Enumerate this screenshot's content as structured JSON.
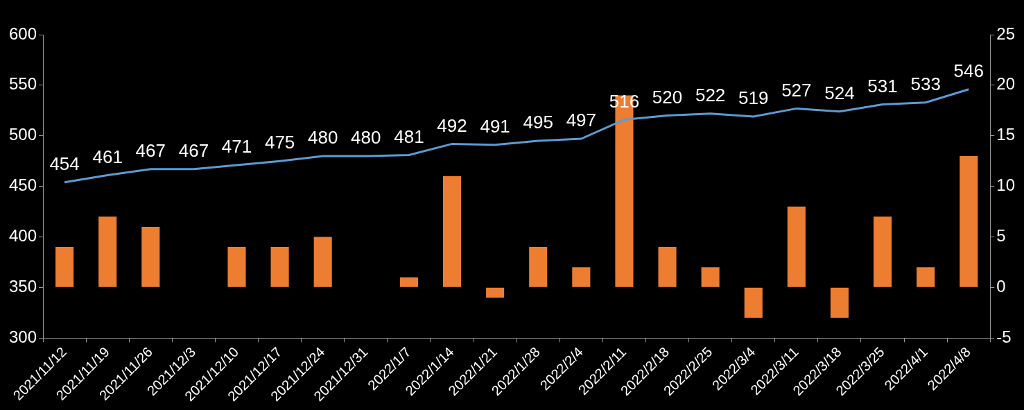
{
  "chart_data": {
    "type": "bar",
    "categories": [
      "2021/11/12",
      "2021/11/19",
      "2021/11/26",
      "2021/12/3",
      "2021/12/10",
      "2021/12/17",
      "2021/12/24",
      "2021/12/31",
      "2022/1/7",
      "2022/1/14",
      "2022/1/21",
      "2022/1/28",
      "2022/2/4",
      "2022/2/11",
      "2022/2/18",
      "2022/2/25",
      "2022/3/4",
      "2022/3/11",
      "2022/3/18",
      "2022/3/25",
      "2022/4/1",
      "2022/4/8"
    ],
    "series": [
      {
        "type": "line",
        "color": "#5b9bd5",
        "marker": "none",
        "data_labels": true,
        "values": [
          454,
          461,
          467,
          467,
          471,
          475,
          480,
          480,
          481,
          492,
          491,
          495,
          497,
          516,
          520,
          522,
          519,
          527,
          524,
          531,
          533,
          546
        ]
      },
      {
        "type": "bar",
        "color": "#ed7d31",
        "axis": "y2",
        "values": [
          4,
          7,
          6,
          0,
          4,
          4,
          5,
          0,
          1,
          11,
          -1,
          4,
          2,
          19,
          4,
          2,
          -3,
          8,
          -3,
          7,
          2,
          13
        ]
      }
    ],
    "ylim": [
      300,
      600
    ],
    "yticks": [
      300,
      350,
      400,
      450,
      500,
      550,
      600
    ],
    "y2lim": [
      -5,
      25
    ],
    "y2ticks": [
      -5,
      0,
      5,
      10,
      15,
      20,
      25
    ],
    "grid": false
  }
}
